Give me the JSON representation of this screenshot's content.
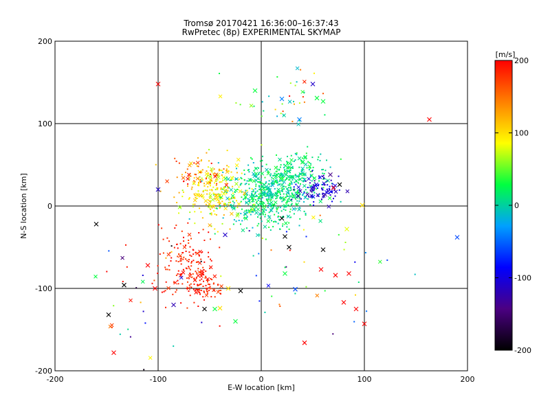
{
  "chart_data": {
    "type": "scatter",
    "title": "Tromsø 20170421 16:36:00–16:37:43",
    "subtitle": "RwPretec (8p) EXPERIMENTAL SKYMAP",
    "xlabel": "E-W location [km]",
    "ylabel": "N-S location [km]",
    "xlim": [
      -200,
      200
    ],
    "ylim": [
      -200,
      200
    ],
    "x_ticks": [
      "-200",
      "-100",
      "0",
      "100",
      "200"
    ],
    "y_ticks": [
      "-200",
      "-100",
      "0",
      "100",
      "200"
    ],
    "grid_lines_at": [
      -100,
      0,
      100
    ],
    "colorbar": {
      "unit": "[m/s]",
      "range": [
        -200,
        200
      ],
      "ticks": [
        "200",
        "100",
        "0",
        "-100",
        "-200"
      ],
      "colors": [
        "#000000",
        "#4b0082",
        "#0000ff",
        "#00a0ff",
        "#00ff40",
        "#ffff00",
        "#ff8000",
        "#ff0000"
      ]
    },
    "markers": {
      "dot": "meteor detection (small)",
      "x": "meteor detection (large)"
    },
    "clusters": [
      {
        "cx": 5,
        "cy": 12,
        "sx": 22,
        "sy": 18,
        "n": 520,
        "v": [
          -20,
          40
        ]
      },
      {
        "cx": 30,
        "cy": 40,
        "sx": 18,
        "sy": 14,
        "n": 180,
        "v": [
          -10,
          40
        ]
      },
      {
        "cx": -45,
        "cy": 15,
        "sx": 14,
        "sy": 18,
        "n": 220,
        "v": [
          60,
          130
        ]
      },
      {
        "cx": -60,
        "cy": 40,
        "sx": 14,
        "sy": 8,
        "n": 60,
        "v": [
          90,
          200
        ]
      },
      {
        "cx": 55,
        "cy": 20,
        "sx": 10,
        "sy": 8,
        "n": 90,
        "v": [
          -130,
          -80
        ]
      },
      {
        "cx": -70,
        "cy": -70,
        "sx": 14,
        "sy": 22,
        "n": 160,
        "v": [
          170,
          200
        ]
      },
      {
        "cx": -55,
        "cy": -100,
        "sx": 10,
        "sy": 8,
        "n": 60,
        "v": [
          170,
          200
        ]
      },
      {
        "cx": 20,
        "cy": 130,
        "sx": 25,
        "sy": 20,
        "n": 40,
        "v": [
          -20,
          200
        ]
      },
      {
        "cx": 40,
        "cy": -80,
        "sx": 40,
        "sy": 40,
        "n": 40,
        "v": [
          -200,
          200
        ]
      },
      {
        "cx": -120,
        "cy": -120,
        "sx": 25,
        "sy": 35,
        "n": 30,
        "v": [
          -200,
          200
        ]
      }
    ],
    "x_markers": [
      {
        "x": -160,
        "y": -22,
        "v": -200
      },
      {
        "x": -133,
        "y": -96,
        "v": -200
      },
      {
        "x": -148,
        "y": -132,
        "v": -200
      },
      {
        "x": -143,
        "y": -178,
        "v": 200
      },
      {
        "x": -100,
        "y": 148,
        "v": 200
      },
      {
        "x": 163,
        "y": 105,
        "v": 200
      },
      {
        "x": 190,
        "y": -38,
        "v": -60
      },
      {
        "x": 100,
        "y": -143,
        "v": 200
      },
      {
        "x": 42,
        "y": -166,
        "v": 200
      },
      {
        "x": 50,
        "y": 148,
        "v": -110
      },
      {
        "x": 54,
        "y": 131,
        "v": 30
      },
      {
        "x": 60,
        "y": 127,
        "v": 30
      },
      {
        "x": 37,
        "y": 105,
        "v": -40
      },
      {
        "x": 20,
        "y": 130,
        "v": -40
      },
      {
        "x": -6,
        "y": 140,
        "v": 30
      },
      {
        "x": 60,
        "y": -53,
        "v": -200
      },
      {
        "x": 27,
        "y": -50,
        "v": -200
      },
      {
        "x": 23,
        "y": -37,
        "v": -200
      },
      {
        "x": 20,
        "y": -15,
        "v": -200
      },
      {
        "x": 85,
        "y": -82,
        "v": 200
      },
      {
        "x": 72,
        "y": -84,
        "v": 200
      },
      {
        "x": 80,
        "y": -117,
        "v": 200
      },
      {
        "x": 92,
        "y": -125,
        "v": 200
      },
      {
        "x": 58,
        "y": -77,
        "v": 200
      },
      {
        "x": 33,
        "y": -101,
        "v": -60
      },
      {
        "x": 23,
        "y": -82,
        "v": 30
      },
      {
        "x": 83,
        "y": -28,
        "v": 80
      },
      {
        "x": 98,
        "y": 1,
        "v": 100
      },
      {
        "x": 67,
        "y": 38,
        "v": -140
      },
      {
        "x": 76,
        "y": 26,
        "v": -200
      },
      {
        "x": 70,
        "y": 22,
        "v": 200
      },
      {
        "x": -100,
        "y": 20,
        "v": -110
      },
      {
        "x": -40,
        "y": -124,
        "v": 100
      },
      {
        "x": -45,
        "y": -125,
        "v": 30
      },
      {
        "x": -55,
        "y": -125,
        "v": -200
      },
      {
        "x": -20,
        "y": -103,
        "v": -200
      },
      {
        "x": -25,
        "y": -140,
        "v": 30
      },
      {
        "x": -32,
        "y": -100,
        "v": 100
      },
      {
        "x": -85,
        "y": -120,
        "v": -120
      },
      {
        "x": -110,
        "y": -72,
        "v": 200
      },
      {
        "x": -103,
        "y": -100,
        "v": 200
      },
      {
        "x": -35,
        "y": -35,
        "v": -110
      }
    ]
  }
}
